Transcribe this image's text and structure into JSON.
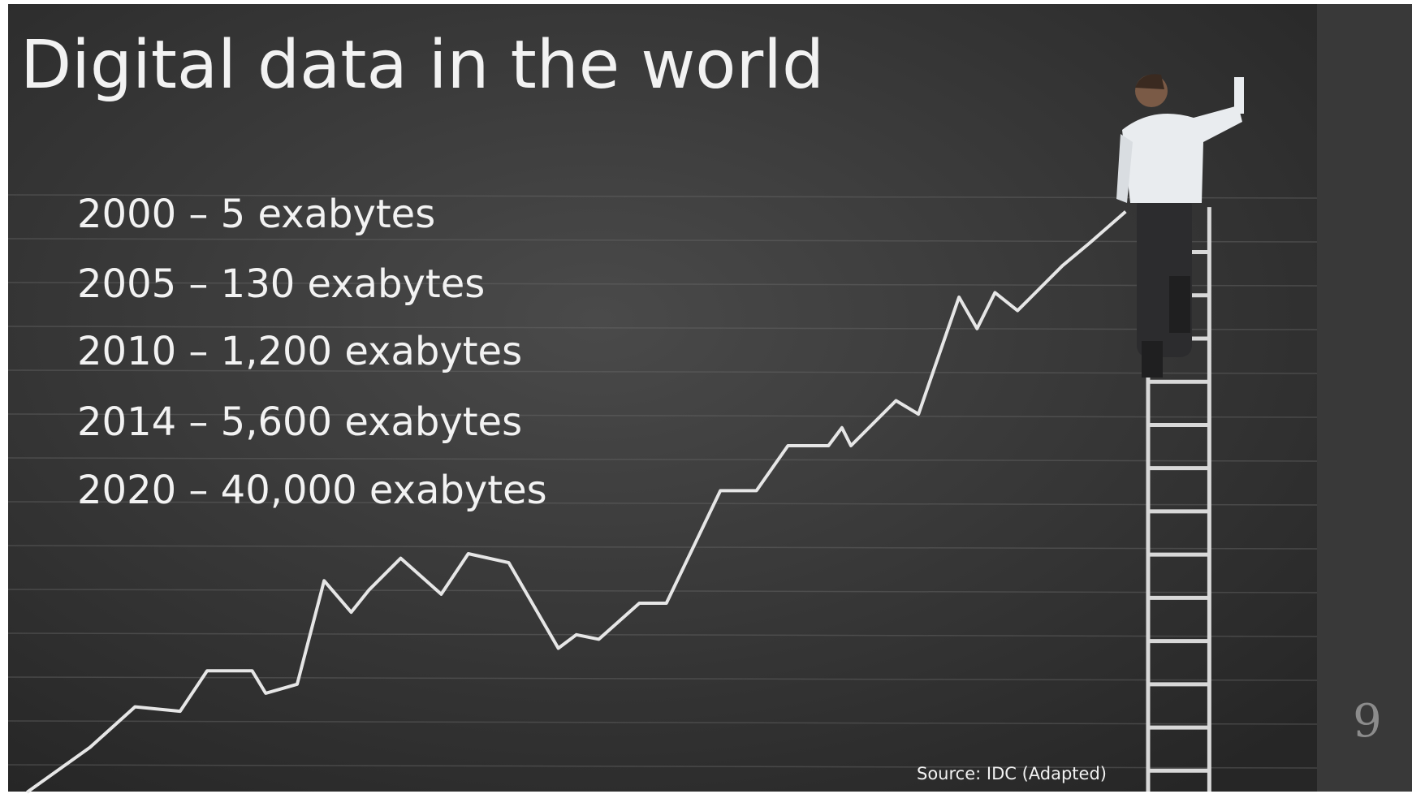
{
  "header": {
    "title": "Digital data in the world"
  },
  "items": [
    "2000 – 5 exabytes",
    "2005 – 130 exabytes",
    "2010 – 1,200 exabytes",
    "2014 – 5,600 exabytes",
    "2020 – 40,000 exabytes"
  ],
  "footer": {
    "source": "Source: IDC (Adapted)",
    "page_number": "9"
  }
}
